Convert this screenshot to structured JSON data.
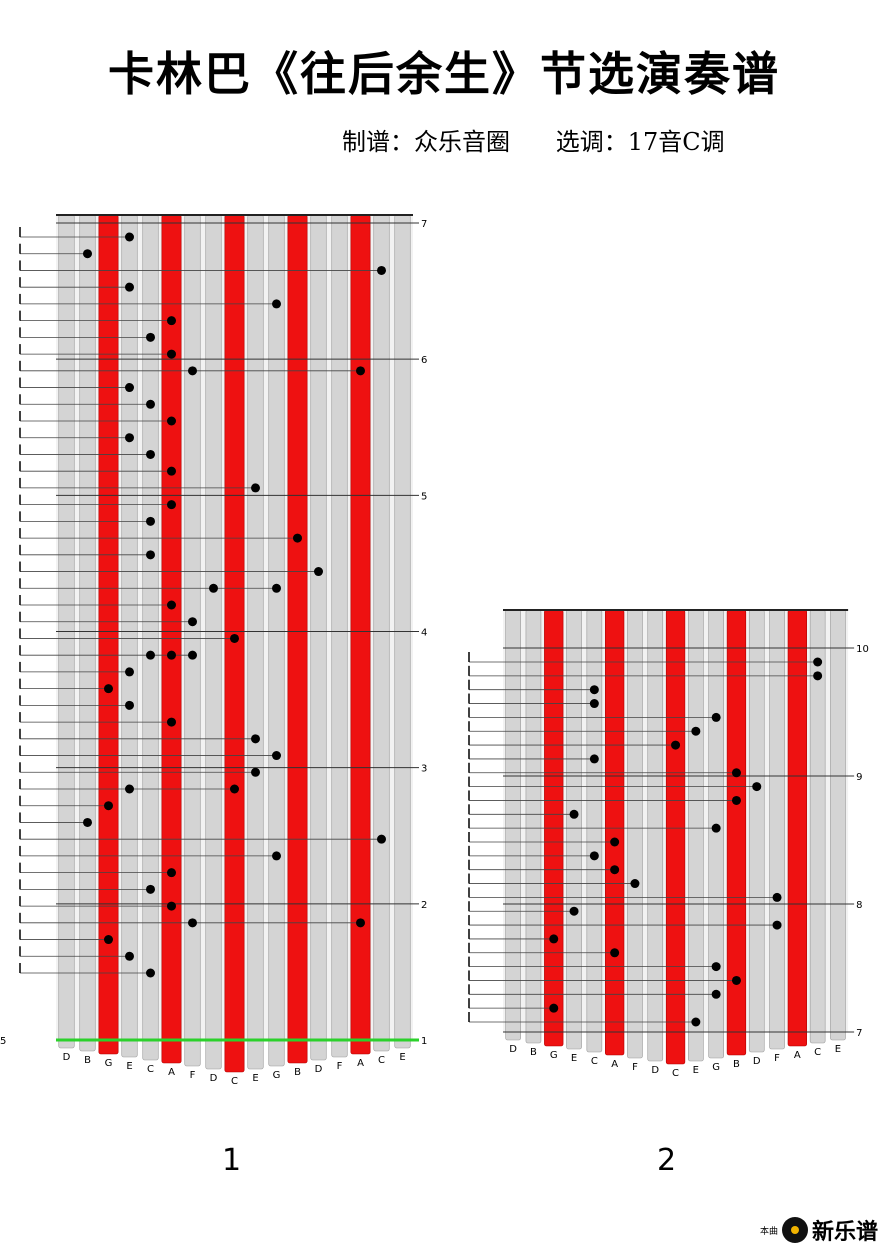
{
  "title": "卡林巴《往后余生》节选演奏谱",
  "subtitle": "制谱：众乐音圈      选调：17音C调",
  "tines": [
    "D",
    "B",
    "G",
    "E",
    "C",
    "A",
    "F",
    "D",
    "C",
    "E",
    "G",
    "B",
    "D",
    "F",
    "A",
    "C",
    "E"
  ],
  "red_tines": [
    2,
    5,
    8,
    11,
    14
  ],
  "colors": {
    "red": "#ee1111",
    "gray": "#d4d4d4",
    "green": "#2bd12b"
  },
  "panels": [
    {
      "page_label": "1",
      "measure_numbers": [
        "7",
        "6",
        "5",
        "4",
        "3",
        "2",
        "1"
      ],
      "left_marker": "5",
      "rows": [
        {
          "notes": [
            3
          ]
        },
        {
          "notes": [
            1
          ]
        },
        {
          "notes": [
            15
          ]
        },
        {
          "notes": [
            3
          ]
        },
        {
          "notes": [
            10
          ]
        },
        {
          "notes": [
            5
          ]
        },
        {
          "notes": [
            4
          ]
        },
        {
          "notes": [
            5
          ]
        },
        {
          "notes": [
            6,
            14
          ]
        },
        {
          "notes": [
            3
          ]
        },
        {
          "notes": [
            4
          ]
        },
        {
          "notes": [
            5
          ]
        },
        {
          "notes": [
            3
          ]
        },
        {
          "notes": [
            4
          ]
        },
        {
          "notes": [
            5
          ]
        },
        {
          "notes": [
            9
          ]
        },
        {
          "notes": [
            5
          ]
        },
        {
          "notes": [
            4
          ]
        },
        {
          "notes": [
            11
          ]
        },
        {
          "notes": [
            4
          ]
        },
        {
          "notes": [
            12
          ]
        },
        {
          "notes": [
            7,
            10
          ]
        },
        {
          "notes": [
            5
          ]
        },
        {
          "notes": [
            6
          ]
        },
        {
          "notes": [
            8
          ]
        },
        {
          "notes": [
            4,
            5,
            6
          ]
        },
        {
          "notes": [
            3
          ]
        },
        {
          "notes": [
            2
          ]
        },
        {
          "notes": [
            3
          ]
        },
        {
          "notes": [
            5
          ]
        },
        {
          "notes": [
            9
          ]
        },
        {
          "notes": [
            10
          ]
        },
        {
          "notes": [
            9
          ]
        },
        {
          "notes": [
            3,
            8
          ]
        },
        {
          "notes": [
            2
          ]
        },
        {
          "notes": [
            1
          ]
        },
        {
          "notes": [
            15
          ]
        },
        {
          "notes": [
            10
          ]
        },
        {
          "notes": [
            5
          ]
        },
        {
          "notes": [
            4
          ]
        },
        {
          "notes": [
            5
          ]
        },
        {
          "notes": [
            6,
            14
          ]
        },
        {
          "notes": [
            2
          ]
        },
        {
          "notes": [
            3
          ]
        },
        {
          "notes": [
            4
          ]
        }
      ]
    },
    {
      "page_label": "2",
      "measure_numbers": [
        "10",
        "9",
        "8",
        "7"
      ],
      "rows": [
        {
          "notes": [
            15
          ]
        },
        {
          "notes": [
            15
          ]
        },
        {
          "notes": [
            4
          ]
        },
        {
          "notes": [
            4
          ]
        },
        {
          "notes": [
            10
          ]
        },
        {
          "notes": [
            9
          ]
        },
        {
          "notes": [
            8
          ]
        },
        {
          "notes": [
            4
          ]
        },
        {
          "notes": [
            11
          ]
        },
        {
          "notes": [
            12
          ]
        },
        {
          "notes": [
            11
          ]
        },
        {
          "notes": [
            3
          ]
        },
        {
          "notes": [
            10
          ]
        },
        {
          "notes": [
            5
          ]
        },
        {
          "notes": [
            4
          ]
        },
        {
          "notes": [
            5
          ]
        },
        {
          "notes": [
            6
          ]
        },
        {
          "notes": [
            13
          ]
        },
        {
          "notes": [
            3
          ]
        },
        {
          "notes": [
            13
          ]
        },
        {
          "notes": [
            2
          ]
        },
        {
          "notes": [
            5
          ]
        },
        {
          "notes": [
            10
          ]
        },
        {
          "notes": [
            11
          ]
        },
        {
          "notes": [
            10
          ]
        },
        {
          "notes": [
            2
          ]
        },
        {
          "notes": [
            9
          ]
        }
      ]
    }
  ]
}
